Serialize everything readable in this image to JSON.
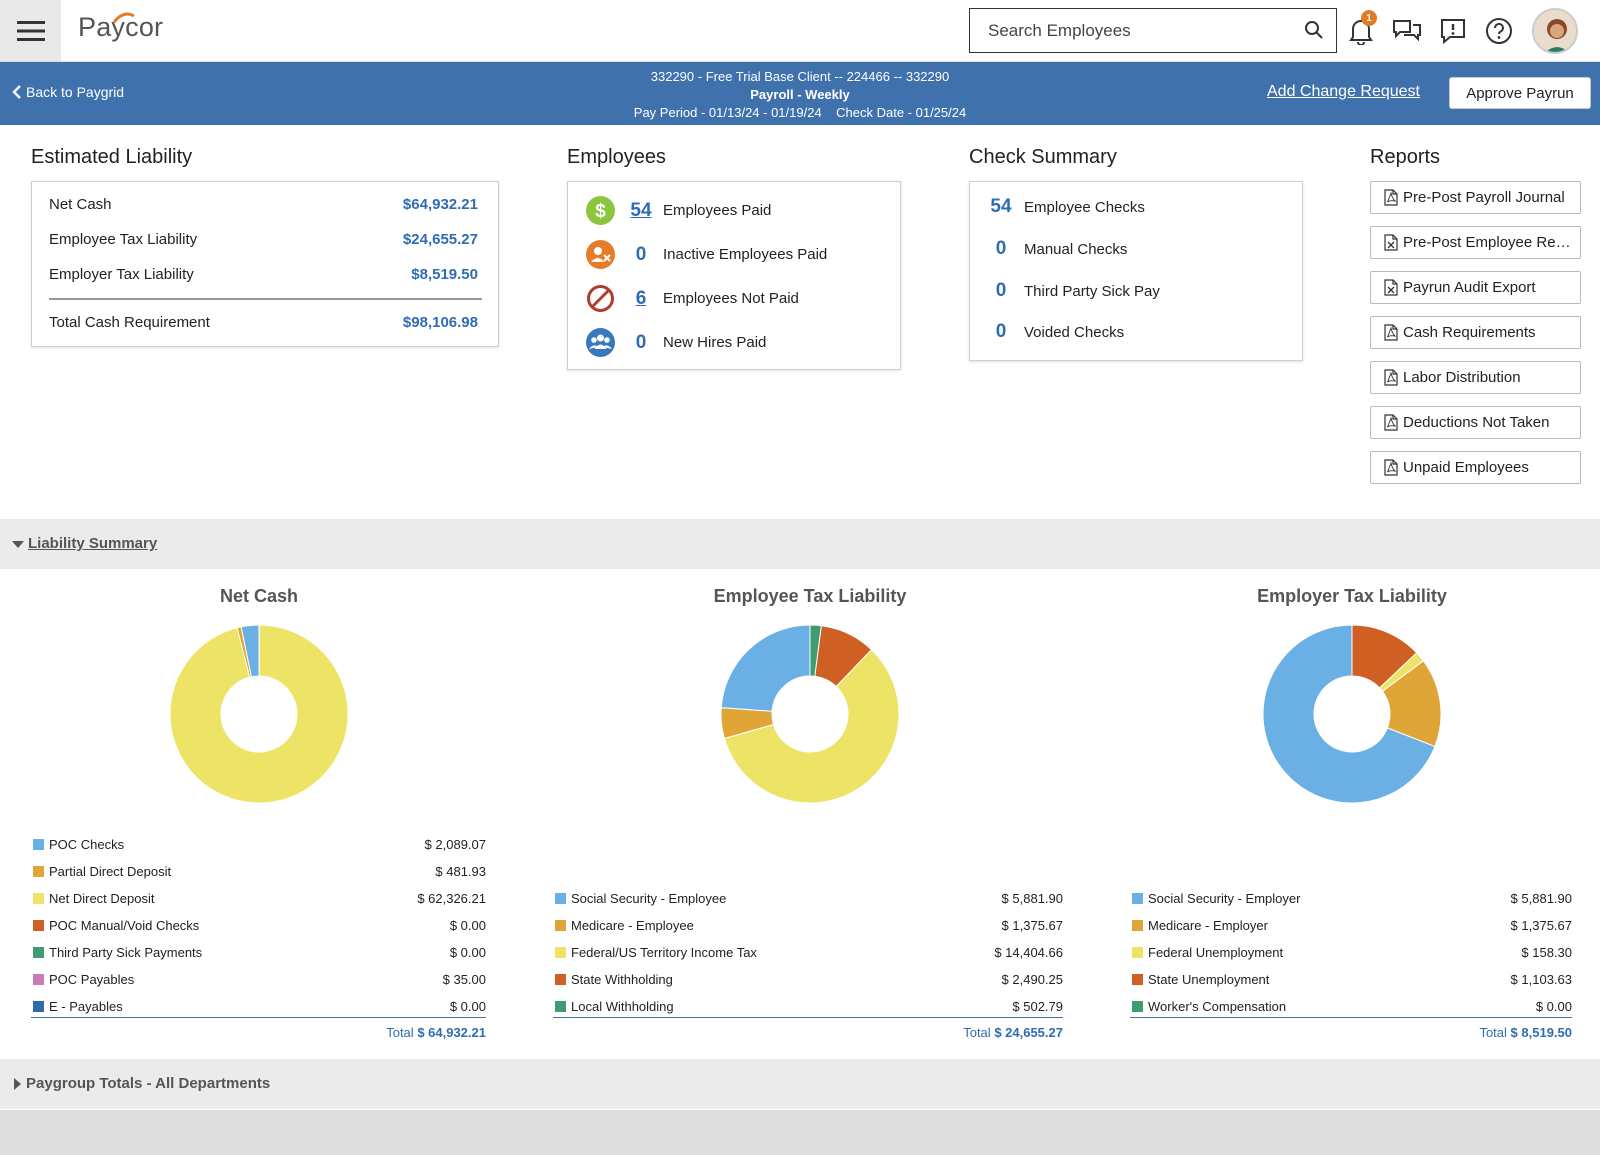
{
  "app": {
    "logo": "Paycor"
  },
  "search": {
    "placeholder": "Search Employees"
  },
  "notifications": {
    "count": "1"
  },
  "header": {
    "back_label": "Back to Paygrid",
    "client_line": "332290 - Free Trial Base Client -- 224466 -- 332290",
    "payroll_line": "Payroll - Weekly",
    "period_line": "Pay Period - 01/13/24 - 01/19/24    Check Date - 01/25/24",
    "add_change_label": "Add Change Request",
    "approve_label": "Approve Payrun"
  },
  "estimated_liability": {
    "title": "Estimated Liability",
    "rows": [
      {
        "label": "Net Cash",
        "value": "$64,932.21"
      },
      {
        "label": "Employee Tax Liability",
        "value": "$24,655.27"
      },
      {
        "label": "Employer Tax Liability",
        "value": "$8,519.50"
      }
    ],
    "total": {
      "label": "Total Cash Requirement",
      "value": "$98,106.98"
    }
  },
  "employees": {
    "title": "Employees",
    "rows": [
      {
        "count": "54",
        "label": "Employees Paid",
        "icon": "dollar-icon",
        "color": "#8cc63f"
      },
      {
        "count": "0",
        "label": "Inactive Employees Paid",
        "icon": "person-x-icon",
        "color": "#e57c2a"
      },
      {
        "count": "6",
        "label": "Employees Not Paid",
        "icon": "prohibited-icon",
        "color": "#b33a2e"
      },
      {
        "count": "0",
        "label": "New Hires Paid",
        "icon": "group-icon",
        "color": "#3a78be"
      }
    ]
  },
  "check_summary": {
    "title": "Check Summary",
    "rows": [
      {
        "count": "54",
        "label": "Employee Checks"
      },
      {
        "count": "0",
        "label": "Manual Checks"
      },
      {
        "count": "0",
        "label": "Third Party Sick Pay"
      },
      {
        "count": "0",
        "label": "Voided Checks"
      }
    ]
  },
  "reports": {
    "title": "Reports",
    "items": [
      {
        "label": "Pre-Post Payroll Journal",
        "icon": "pdf-icon"
      },
      {
        "label": "Pre-Post Employee Register",
        "icon": "excel-icon"
      },
      {
        "label": "Payrun Audit Export",
        "icon": "excel-icon"
      },
      {
        "label": "Cash Requirements",
        "icon": "pdf-icon"
      },
      {
        "label": "Labor Distribution",
        "icon": "pdf-icon"
      },
      {
        "label": "Deductions Not Taken",
        "icon": "pdf-icon"
      },
      {
        "label": "Unpaid Employees",
        "icon": "pdf-icon"
      }
    ]
  },
  "liability_summary": {
    "label": "Liability Summary"
  },
  "paygroup_totals": {
    "label": "Paygroup Totals - All Departments"
  },
  "chart_data": [
    {
      "type": "pie",
      "title": "Net Cash",
      "categories": [
        "POC Checks",
        "Partial Direct Deposit",
        "Net Direct Deposit",
        "POC Manual/Void Checks",
        "Third Party Sick Payments",
        "POC Payables",
        "E - Payables"
      ],
      "values": [
        2089.07,
        481.93,
        62326.21,
        0.0,
        0.0,
        35.0,
        0.0
      ],
      "labels": [
        "$ 2,089.07",
        "$ 481.93",
        "$ 62,326.21",
        "$ 0.00",
        "$ 0.00",
        "$ 35.00",
        "$ 0.00"
      ],
      "colors": [
        "#6ab0e4",
        "#e0a537",
        "#ede467",
        "#cf5f22",
        "#3f9b70",
        "#c97cb0",
        "#2e6cae"
      ],
      "total_label": "Total",
      "total_value": "$ 64,932.21"
    },
    {
      "type": "pie",
      "title": "Employee Tax Liability",
      "categories": [
        "Social Security - Employee",
        "Medicare - Employee",
        "Federal/US Territory Income Tax",
        "State Withholding",
        "Local Withholding"
      ],
      "values": [
        5881.9,
        1375.67,
        14404.66,
        2490.25,
        502.79
      ],
      "labels": [
        "$ 5,881.90",
        "$ 1,375.67",
        "$ 14,404.66",
        "$ 2,490.25",
        "$ 502.79"
      ],
      "colors": [
        "#6ab0e4",
        "#e0a537",
        "#ede467",
        "#cf5f22",
        "#3f9b70"
      ],
      "total_label": "Total",
      "total_value": "$ 24,655.27"
    },
    {
      "type": "pie",
      "title": "Employer Tax Liability",
      "categories": [
        "Social Security - Employer",
        "Medicare - Employer",
        "Federal Unemployment",
        "State Unemployment",
        "Worker's Compensation"
      ],
      "values": [
        5881.9,
        1375.67,
        158.3,
        1103.63,
        0.0
      ],
      "labels": [
        "$ 5,881.90",
        "$ 1,375.67",
        "$ 158.30",
        "$ 1,103.63",
        "$ 0.00"
      ],
      "colors": [
        "#6ab0e4",
        "#e0a537",
        "#ede467",
        "#cf5f22",
        "#3f9b70"
      ],
      "total_label": "Total",
      "total_value": "$ 8,519.50"
    }
  ]
}
